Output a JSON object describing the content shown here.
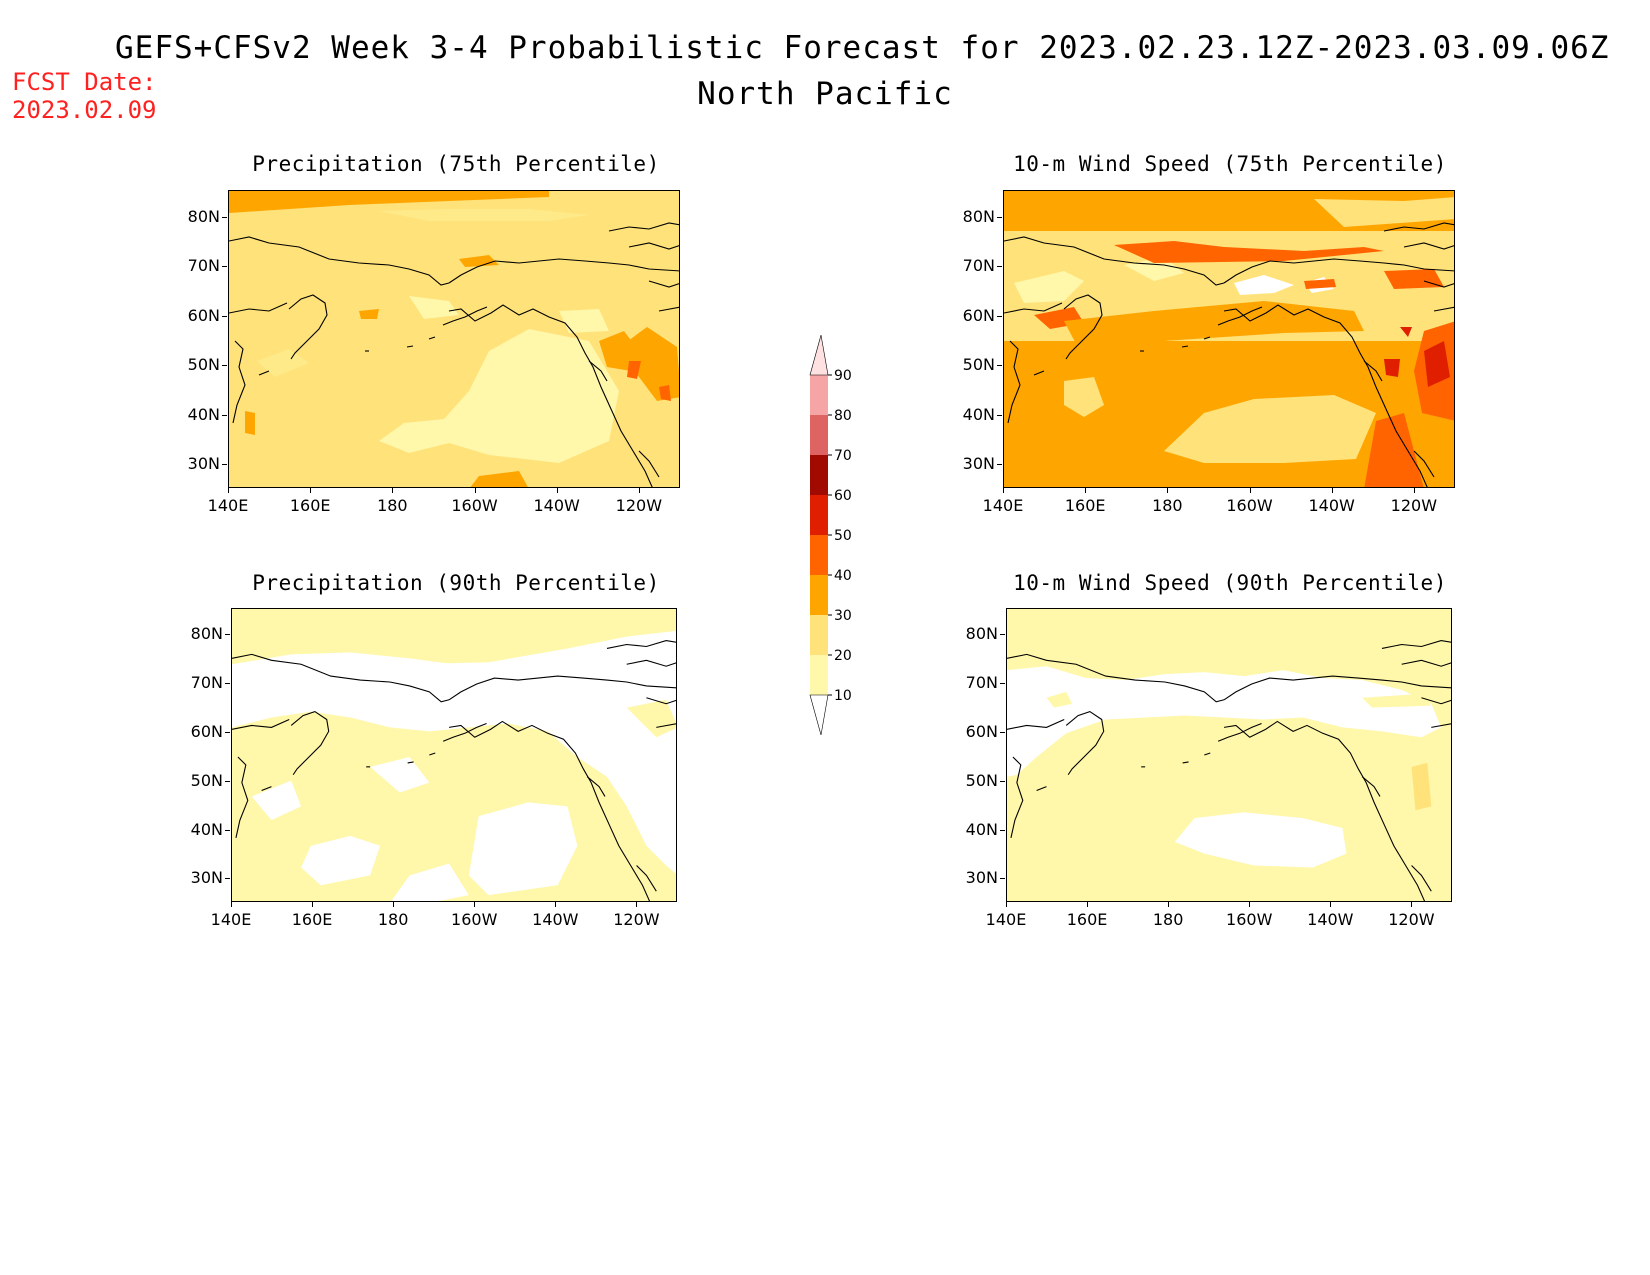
{
  "header": {
    "title": "GEFS+CFSv2 Week 3-4 Probabilistic Forecast for 2023.02.23.12Z-2023.03.09.06Z",
    "region": "North Pacific",
    "fcst_label": "FCST Date:",
    "fcst_date": "2023.02.09"
  },
  "axes": {
    "y_ticks": [
      "80N",
      "70N",
      "60N",
      "50N",
      "40N",
      "30N"
    ],
    "x_ticks": [
      "140E",
      "160E",
      "180",
      "160W",
      "140W",
      "120W"
    ]
  },
  "panels": [
    {
      "title": "Precipitation (75th Percentile)",
      "scheme": "precip75"
    },
    {
      "title": "10-m Wind Speed (75th Percentile)",
      "scheme": "wind75"
    },
    {
      "title": "Precipitation (90th Percentile)",
      "scheme": "precip90"
    },
    {
      "title": "10-m Wind Speed (90th Percentile)",
      "scheme": "wind90"
    }
  ],
  "colorbar": {
    "levels": [
      "10",
      "20",
      "30",
      "40",
      "50",
      "60",
      "70",
      "80",
      "90"
    ],
    "colors": [
      "#fff7aa",
      "#ffe27a",
      "#ffa500",
      "#ff6400",
      "#e01e00",
      "#a00a00",
      "#de6464",
      "#f5a5a5",
      "#ffe1e1"
    ]
  }
}
